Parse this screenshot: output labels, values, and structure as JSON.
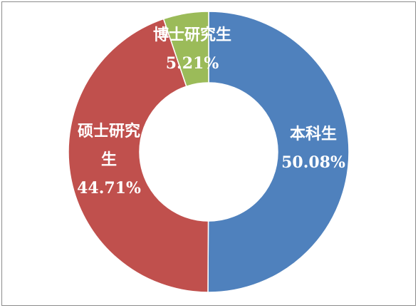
{
  "chart_data": {
    "type": "pie",
    "variant": "donut",
    "title": "",
    "legend": "none",
    "slices": [
      {
        "label_lines": [
          "本科生"
        ],
        "value_label": "50.08%",
        "value": 50.08,
        "color": "#4f81bd"
      },
      {
        "label_lines": [
          "硕士研究",
          "生"
        ],
        "value_label": "44.71%",
        "value": 44.71,
        "color": "#c0504d"
      },
      {
        "label_lines": [
          "博士研究生"
        ],
        "value_label": "5.21%",
        "value": 5.21,
        "color": "#9bbb59"
      }
    ],
    "start_angle_deg": 0,
    "direction": "clockwise",
    "separator_color": "#ffffff"
  }
}
